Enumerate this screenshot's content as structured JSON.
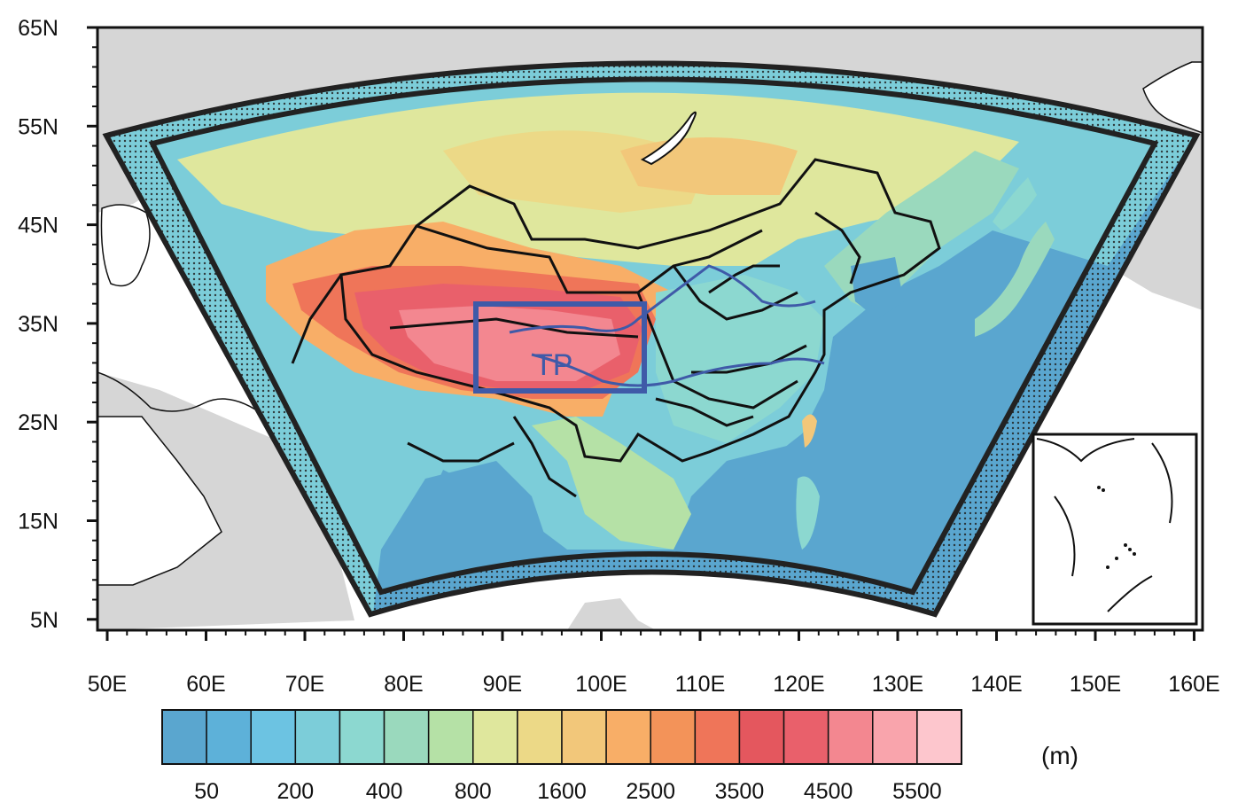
{
  "map": {
    "lat_ticks": [
      "65N",
      "55N",
      "45N",
      "35N",
      "25N",
      "15N",
      "5N"
    ],
    "lon_ticks": [
      "50E",
      "60E",
      "70E",
      "80E",
      "90E",
      "100E",
      "110E",
      "120E",
      "130E",
      "140E",
      "150E",
      "160E"
    ],
    "region_label": "TP"
  },
  "colorbar": {
    "colors": [
      "#5aa6cf",
      "#5db1d9",
      "#6cc3e2",
      "#7ccdd9",
      "#8cd8d0",
      "#9ad9bd",
      "#b5e1a6",
      "#dfe79d",
      "#ecd987",
      "#f2c77a",
      "#f8ae67",
      "#f39359",
      "#ef7559",
      "#e4575e",
      "#e9606b",
      "#f38790",
      "#f9a4ac",
      "#fdc6cd"
    ],
    "tick_labels": [
      "50",
      "200",
      "400",
      "800",
      "1600",
      "2500",
      "3500",
      "4500",
      "5500"
    ],
    "unit": "(m)"
  }
}
